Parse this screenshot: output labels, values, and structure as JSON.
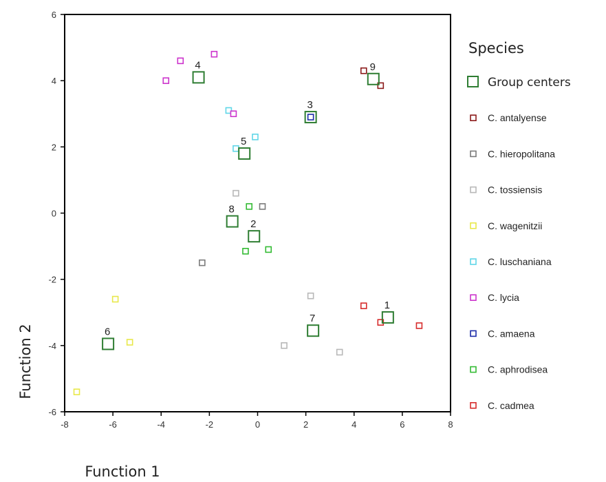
{
  "chart_data": {
    "type": "scatter",
    "xlabel": "Function 1",
    "ylabel": "Function 2",
    "xlim": [
      -8,
      8
    ],
    "ylim": [
      -6,
      6
    ],
    "xticks": [
      "-8",
      "-6",
      "-4",
      "-2",
      "0",
      "2",
      "4",
      "6",
      "8"
    ],
    "yticks": [
      "6",
      "4",
      "2",
      "0",
      "-2",
      "-4",
      "-6"
    ],
    "grid": false,
    "legend": {
      "title": "Species",
      "placement": "right",
      "entries": [
        {
          "label": "Group centers",
          "color": "#2e7d32"
        },
        {
          "label": "C. antalyense",
          "color": "#8b1a1a"
        },
        {
          "label": "C. hieropolitana",
          "color": "#7a7a7a"
        },
        {
          "label": "C. tossiensis",
          "color": "#b8b8b8"
        },
        {
          "label": "C. wagenitzii",
          "color": "#e8e84a"
        },
        {
          "label": "C. luschaniana",
          "color": "#5fd6e8"
        },
        {
          "label": "C. lycia",
          "color": "#cc33cc"
        },
        {
          "label": "C. amaena",
          "color": "#1a2aa8"
        },
        {
          "label": "C. aphrodisea",
          "color": "#33bb33"
        },
        {
          "label": "C. cadmea",
          "color": "#d62b2b"
        }
      ]
    },
    "series": [
      {
        "name": "C. antalyense",
        "color": "#8b1a1a",
        "points": [
          [
            4.4,
            4.3
          ],
          [
            5.1,
            3.85
          ]
        ]
      },
      {
        "name": "C. hieropolitana",
        "color": "#7a7a7a",
        "points": [
          [
            -2.3,
            -1.5
          ],
          [
            0.2,
            0.2
          ]
        ]
      },
      {
        "name": "C. tossiensis",
        "color": "#b8b8b8",
        "points": [
          [
            -0.9,
            0.6
          ],
          [
            2.2,
            -2.5
          ],
          [
            1.1,
            -4.0
          ],
          [
            3.4,
            -4.2
          ]
        ]
      },
      {
        "name": "C. wagenitzii",
        "color": "#e8e84a",
        "points": [
          [
            -5.9,
            -2.6
          ],
          [
            -5.3,
            -3.9
          ],
          [
            -7.5,
            -5.4
          ]
        ]
      },
      {
        "name": "C. luschaniana",
        "color": "#5fd6e8",
        "points": [
          [
            -1.2,
            3.1
          ],
          [
            -0.9,
            1.95
          ],
          [
            -0.1,
            2.3
          ]
        ]
      },
      {
        "name": "C. lycia",
        "color": "#cc33cc",
        "points": [
          [
            -3.8,
            4.0
          ],
          [
            -3.2,
            4.6
          ],
          [
            -1.8,
            4.8
          ],
          [
            -1.0,
            3.0
          ]
        ]
      },
      {
        "name": "C. amaena",
        "color": "#1a2aa8",
        "points": [
          [
            2.2,
            2.9
          ]
        ]
      },
      {
        "name": "C. aphrodisea",
        "color": "#33bb33",
        "points": [
          [
            -0.35,
            0.2
          ],
          [
            -0.5,
            -1.15
          ],
          [
            0.45,
            -1.1
          ]
        ]
      },
      {
        "name": "C. cadmea",
        "color": "#d62b2b",
        "points": [
          [
            4.4,
            -2.8
          ],
          [
            5.1,
            -3.3
          ],
          [
            6.7,
            -3.4
          ]
        ]
      }
    ],
    "group_centers": {
      "color": "#2e7d32",
      "points": [
        {
          "label": "1",
          "x": 5.4,
          "y": -3.15
        },
        {
          "label": "2",
          "x": -0.15,
          "y": -0.7
        },
        {
          "label": "3",
          "x": 2.2,
          "y": 2.9
        },
        {
          "label": "4",
          "x": -2.45,
          "y": 4.1
        },
        {
          "label": "5",
          "x": -0.55,
          "y": 1.8
        },
        {
          "label": "6",
          "x": -6.2,
          "y": -3.95
        },
        {
          "label": "7",
          "x": 2.3,
          "y": -3.55
        },
        {
          "label": "8",
          "x": -1.05,
          "y": -0.25
        },
        {
          "label": "9",
          "x": 4.8,
          "y": 4.05
        }
      ]
    }
  }
}
